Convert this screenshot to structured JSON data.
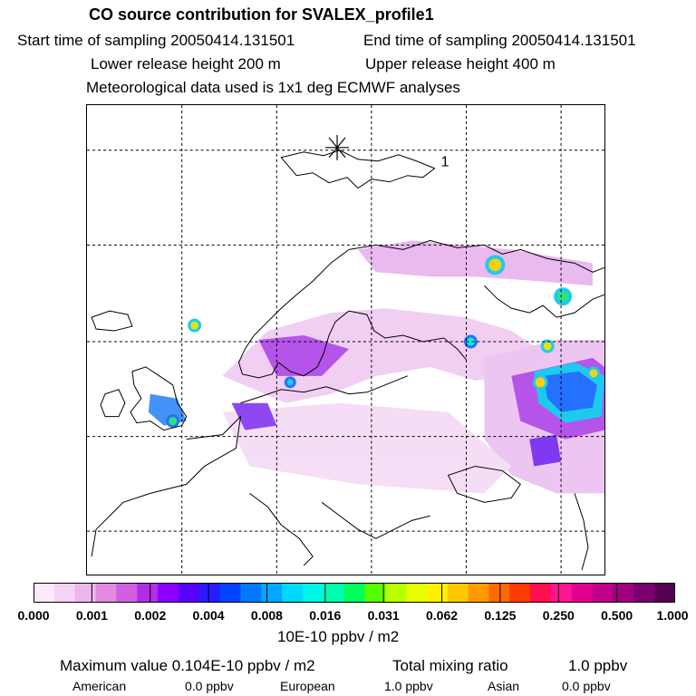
{
  "header": {
    "title": "CO  source contribution for SVALEX_profile1",
    "start_label": "Start time of sampling 20050414.131501",
    "end_label": "End time of sampling 20050414.131501",
    "lower_label": "Lower release height  200 m",
    "upper_label": "Upper release height  400 m",
    "met_label": "Meteorological data used is 1x1 deg ECMWF analyses"
  },
  "map": {
    "marker_label": "1"
  },
  "colorbar": {
    "colors": [
      "#fde9fb",
      "#f6d2f4",
      "#eeb6ec",
      "#e28ae0",
      "#cf5fe0",
      "#b22ee6",
      "#8d00ff",
      "#5a00ff",
      "#2a1bff",
      "#0044ff",
      "#0079ff",
      "#00a6ff",
      "#00d8ff",
      "#00f5e8",
      "#00ffad",
      "#00ff5a",
      "#55ff00",
      "#b8ff00",
      "#e7ff00",
      "#fff000",
      "#ffc800",
      "#ff9a00",
      "#ff6a00",
      "#ff3a00",
      "#ff0f4d",
      "#ff1493",
      "#e00090",
      "#c0008a",
      "#a00080",
      "#7a0070",
      "#550050"
    ],
    "ticks": [
      "0.000",
      "0.001",
      "0.002",
      "0.004",
      "0.008",
      "0.016",
      "0.031",
      "0.062",
      "0.125",
      "0.250",
      "0.500",
      "1.000"
    ],
    "unit": "10E-10 ppbv / m2"
  },
  "footer": {
    "max_value": "Maximum value  0.104E-10 ppbv / m2",
    "total_label": "Total mixing ratio",
    "total_value": "1.0 ppbv",
    "american_label": "American",
    "american_value": "0.0 ppbv",
    "european_label": "European",
    "european_value": "1.0 ppbv",
    "asian_label": "Asian",
    "asian_value": "0.0 ppbv"
  }
}
